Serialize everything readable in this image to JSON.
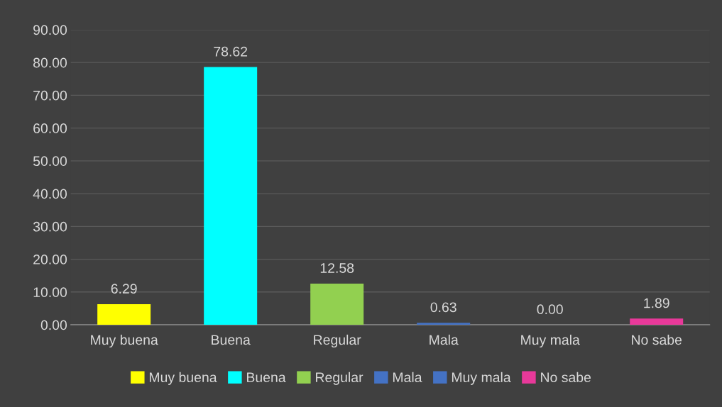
{
  "chart_data": {
    "type": "bar",
    "categories": [
      "Muy buena",
      "Buena",
      "Regular",
      "Mala",
      "Muy mala",
      "No sabe"
    ],
    "series": [
      {
        "name": "Muy buena",
        "color": "#ffff00",
        "values": [
          6.29,
          null,
          null,
          null,
          null,
          null
        ],
        "value_labels": [
          "6.29",
          null,
          null,
          null,
          null,
          null
        ]
      },
      {
        "name": "Buena",
        "color": "#00ffff",
        "values": [
          null,
          78.62,
          null,
          null,
          null,
          null
        ],
        "value_labels": [
          null,
          "78.62",
          null,
          null,
          null,
          null
        ]
      },
      {
        "name": "Regular",
        "color": "#92d050",
        "values": [
          null,
          null,
          12.58,
          null,
          null,
          null
        ],
        "value_labels": [
          null,
          null,
          "12.58",
          null,
          null,
          null
        ]
      },
      {
        "name": "Mala",
        "color": "#4472c4",
        "values": [
          null,
          null,
          null,
          0.63,
          null,
          null
        ],
        "value_labels": [
          null,
          null,
          null,
          "0.63",
          null,
          null
        ]
      },
      {
        "name": "Muy mala",
        "color": "#4472c4",
        "values": [
          null,
          null,
          null,
          null,
          0.0,
          null
        ],
        "value_labels": [
          null,
          null,
          null,
          null,
          "0.00",
          null
        ]
      },
      {
        "name": "No sabe",
        "color": "#e8399a",
        "values": [
          null,
          null,
          null,
          null,
          null,
          1.89
        ],
        "value_labels": [
          null,
          null,
          null,
          null,
          null,
          "1.89"
        ]
      }
    ],
    "ylim": [
      0,
      90
    ],
    "yticks": [
      {
        "value": 0,
        "label": "0.00"
      },
      {
        "value": 10,
        "label": "10.00"
      },
      {
        "value": 20,
        "label": "20.00"
      },
      {
        "value": 30,
        "label": "30.00"
      },
      {
        "value": 40,
        "label": "40.00"
      },
      {
        "value": 50,
        "label": "50.00"
      },
      {
        "value": 60,
        "label": "60.00"
      },
      {
        "value": 70,
        "label": "70.00"
      },
      {
        "value": 80,
        "label": "80.00"
      },
      {
        "value": 90,
        "label": "90.00"
      }
    ],
    "grid": "y",
    "legend": "bottom"
  }
}
